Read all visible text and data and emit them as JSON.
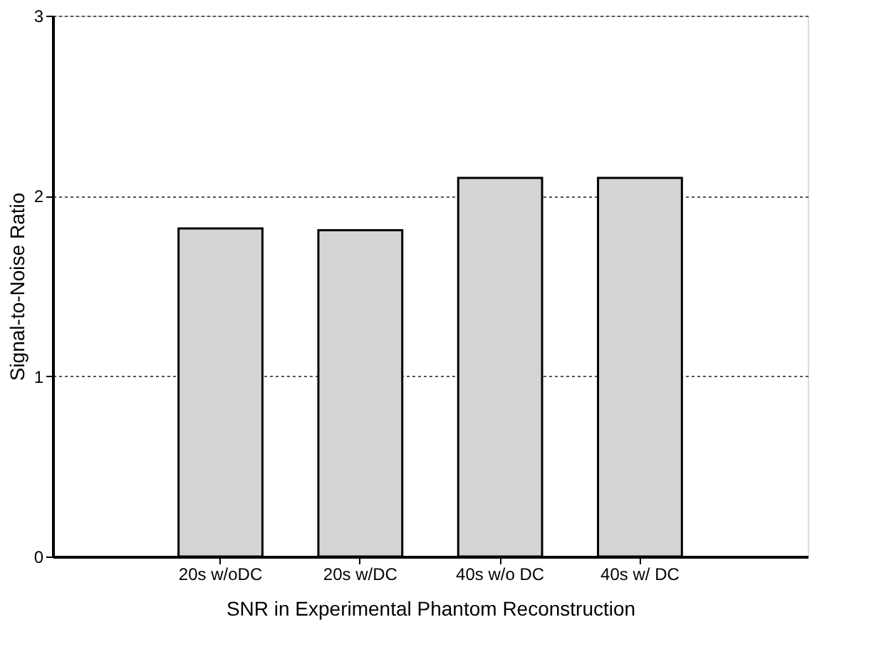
{
  "chart_data": {
    "type": "bar",
    "xlabel": "SNR in Experimental Phantom Reconstruction",
    "ylabel": "Signal-to-Noise Ratio",
    "categories": [
      "20s w/oDC",
      "20s w/DC",
      "40s w/o DC",
      "40s w/ DC"
    ],
    "values": [
      1.82,
      1.81,
      2.1,
      2.1
    ],
    "color": "#d4d4d4",
    "ylim": [
      0,
      3
    ],
    "yticks": [
      0,
      1,
      2,
      3
    ],
    "grid": "y"
  }
}
